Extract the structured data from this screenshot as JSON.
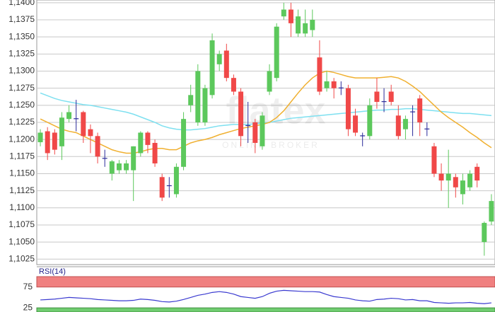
{
  "chart_data": [
    {
      "type": "candlestick",
      "open": [
        1.1196,
        1.1212,
        1.121,
        1.119,
        1.123,
        1.123,
        1.124,
        1.1215,
        1.1205,
        1.1172,
        1.115,
        1.1155,
        1.1155,
        1.1155,
        1.118,
        1.121,
        1.1195,
        1.1145,
        1.1132,
        1.112,
        1.116,
        1.125,
        1.1225,
        1.1225,
        1.1265,
        1.131,
        1.133,
        1.129,
        1.127,
        1.122,
        1.1225,
        1.119,
        1.127,
        1.129,
        1.138,
        1.139,
        1.1355,
        1.1355,
        1.136,
        1.132,
        1.1275,
        1.1285,
        1.1275,
        1.1275,
        1.1235,
        1.1205,
        1.1205,
        1.127,
        1.1255,
        1.127,
        1.1235,
        1.1215,
        1.124,
        1.126,
        1.1215,
        1.119,
        1.115,
        1.114,
        1.1145,
        1.112,
        1.113,
        1.116,
        1.105,
        1.108
      ],
      "high": [
        1.1215,
        1.1218,
        1.1215,
        1.124,
        1.125,
        1.1258,
        1.1242,
        1.1222,
        1.121,
        1.1185,
        1.117,
        1.117,
        1.117,
        1.119,
        1.1212,
        1.1212,
        1.12,
        1.115,
        1.1145,
        1.1165,
        1.124,
        1.128,
        1.131,
        1.128,
        1.1355,
        1.133,
        1.134,
        1.1295,
        1.1275,
        1.1255,
        1.123,
        1.124,
        1.131,
        1.137,
        1.14,
        1.14,
        1.139,
        1.139,
        1.139,
        1.1345,
        1.13,
        1.129,
        1.1285,
        1.128,
        1.1245,
        1.121,
        1.126,
        1.129,
        1.1275,
        1.128,
        1.125,
        1.1235,
        1.125,
        1.1265,
        1.1225,
        1.1195,
        1.1165,
        1.1185,
        1.115,
        1.115,
        1.1155,
        1.1165,
        1.108,
        1.112
      ],
      "low": [
        1.119,
        1.117,
        1.1178,
        1.117,
        1.1225,
        1.1212,
        1.1195,
        1.118,
        1.1165,
        1.116,
        1.114,
        1.115,
        1.115,
        1.111,
        1.1175,
        1.118,
        1.116,
        1.111,
        1.1115,
        1.1115,
        1.1155,
        1.124,
        1.122,
        1.122,
        1.126,
        1.13,
        1.1285,
        1.1265,
        1.119,
        1.1195,
        1.118,
        1.1185,
        1.1265,
        1.1285,
        1.1375,
        1.135,
        1.135,
        1.135,
        1.135,
        1.1265,
        1.127,
        1.126,
        1.1265,
        1.1205,
        1.1205,
        1.119,
        1.12,
        1.1245,
        1.124,
        1.125,
        1.12,
        1.12,
        1.1205,
        1.1205,
        1.1205,
        1.1145,
        1.1125,
        1.11,
        1.1115,
        1.1105,
        1.1125,
        1.113,
        1.103,
        1.1075
      ],
      "close": [
        1.121,
        1.118,
        1.1185,
        1.1232,
        1.124,
        1.1231,
        1.1205,
        1.1205,
        1.1175,
        1.1173,
        1.1168,
        1.1165,
        1.1165,
        1.119,
        1.121,
        1.1192,
        1.1165,
        1.1115,
        1.1133,
        1.116,
        1.123,
        1.1265,
        1.13,
        1.1275,
        1.1345,
        1.1325,
        1.129,
        1.127,
        1.1205,
        1.1221,
        1.1195,
        1.1235,
        1.13,
        1.1365,
        1.139,
        1.137,
        1.138,
        1.137,
        1.1375,
        1.127,
        1.1285,
        1.1275,
        1.1276,
        1.1215,
        1.121,
        1.1206,
        1.125,
        1.1255,
        1.1256,
        1.1255,
        1.1205,
        1.123,
        1.1241,
        1.1225,
        1.1216,
        1.115,
        1.114,
        1.115,
        1.113,
        1.114,
        1.115,
        1.114,
        1.1078,
        1.111
      ],
      "up_color": "#5cc85c",
      "down_color": "#f04848",
      "doji_color": "#2a2a9a",
      "overlays": [
        {
          "color": "#7ee0f0",
          "values": [
            1.1268,
            1.1264,
            1.126,
            1.1257,
            1.1255,
            1.1253,
            1.1251,
            1.125,
            1.1248,
            1.1246,
            1.1244,
            1.1242,
            1.124,
            1.1237,
            1.1233,
            1.1229,
            1.1225,
            1.122,
            1.1217,
            1.1215,
            1.1214,
            1.1214,
            1.1215,
            1.1216,
            1.1218,
            1.122,
            1.1221,
            1.1222,
            1.1222,
            1.1222,
            1.1223,
            1.1224,
            1.1225,
            1.1227,
            1.1229,
            1.1231,
            1.1232,
            1.1233,
            1.1234,
            1.1235,
            1.1236,
            1.1237,
            1.1238,
            1.1239,
            1.124,
            1.1241,
            1.1242,
            1.1243,
            1.1243,
            1.1244,
            1.1244,
            1.1245,
            1.1245,
            1.1244,
            1.1243,
            1.1242,
            1.1241,
            1.124,
            1.1239,
            1.1238,
            1.1238,
            1.1237,
            1.1236,
            1.1235
          ]
        },
        {
          "color": "#f0b030",
          "values": [
            1.123,
            1.1225,
            1.122,
            1.1215,
            1.1212,
            1.121,
            1.1205,
            1.12,
            1.1195,
            1.119,
            1.1185,
            1.1182,
            1.118,
            1.118,
            1.1182,
            1.1185,
            1.1187,
            1.1187,
            1.1185,
            1.1185,
            1.119,
            1.1195,
            1.1198,
            1.12,
            1.1203,
            1.1207,
            1.121,
            1.1213,
            1.1216,
            1.1218,
            1.122,
            1.1222,
            1.1225,
            1.1232,
            1.1242,
            1.1255,
            1.1268,
            1.128,
            1.129,
            1.1297,
            1.13,
            1.1298,
            1.1295,
            1.1292,
            1.129,
            1.129,
            1.129,
            1.129,
            1.1291,
            1.1292,
            1.129,
            1.1285,
            1.1278,
            1.127,
            1.126,
            1.125,
            1.124,
            1.1232,
            1.1225,
            1.1218,
            1.121,
            1.1203,
            1.1195,
            1.1188
          ]
        }
      ],
      "ylim": [
        1.1017,
        1.1404
      ],
      "yticks": [
        {
          "value": 1.1025,
          "label": "1,1025"
        },
        {
          "value": 1.105,
          "label": "1,1050"
        },
        {
          "value": 1.1075,
          "label": "1,1075"
        },
        {
          "value": 1.11,
          "label": "1,1100"
        },
        {
          "value": 1.1125,
          "label": "1,1125"
        },
        {
          "value": 1.115,
          "label": "1,1150"
        },
        {
          "value": 1.1175,
          "label": "1,1175"
        },
        {
          "value": 1.12,
          "label": "1,1200"
        },
        {
          "value": 1.1225,
          "label": "1,1225"
        },
        {
          "value": 1.125,
          "label": "1,1250"
        },
        {
          "value": 1.1275,
          "label": "1,1275"
        },
        {
          "value": 1.13,
          "label": "1,1300"
        },
        {
          "value": 1.1325,
          "label": "1,1325"
        },
        {
          "value": 1.135,
          "label": "1,1350"
        },
        {
          "value": 1.1375,
          "label": "1,1375"
        },
        {
          "value": 1.14,
          "label": "1,1400"
        }
      ],
      "grid": true,
      "watermark": "flatex",
      "watermark_subtitle": "ONLINE BROKER"
    },
    {
      "type": "line",
      "title": "RSI(14)",
      "color": "#3a3ad0",
      "values": [
        44,
        45,
        46,
        48,
        50,
        49,
        48,
        47,
        45,
        44,
        43,
        42,
        42,
        43,
        46,
        45,
        43,
        40,
        39,
        41,
        45,
        50,
        55,
        58,
        62,
        64,
        62,
        58,
        52,
        50,
        48,
        52,
        60,
        65,
        67,
        66,
        65,
        64,
        64,
        63,
        57,
        52,
        50,
        48,
        44,
        42,
        41,
        45,
        46,
        48,
        47,
        44,
        45,
        42,
        42,
        38,
        37,
        36,
        37,
        37,
        38,
        36,
        35,
        37
      ],
      "ylim": [
        15,
        100
      ],
      "yticks": [
        25,
        75
      ],
      "upper_band_color": "#f08080",
      "lower_band_color": "#70cc70"
    }
  ]
}
